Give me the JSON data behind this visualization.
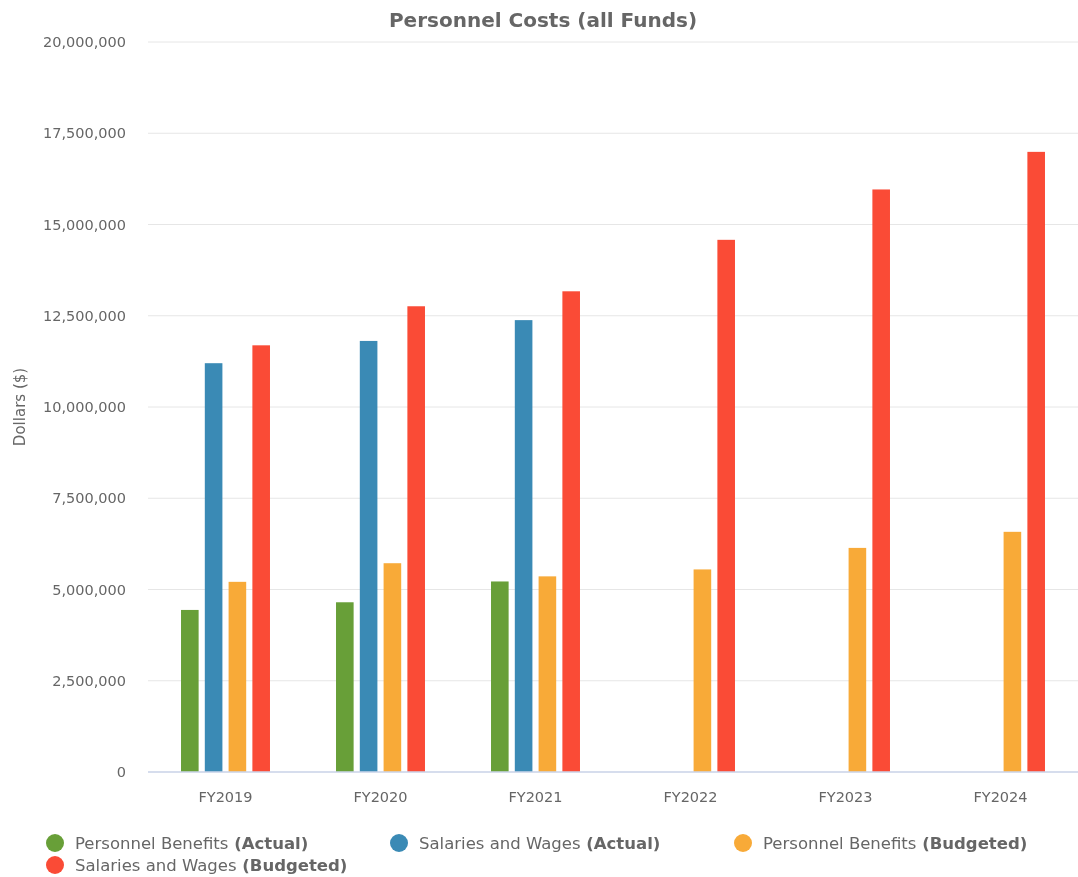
{
  "chart_data": {
    "type": "bar",
    "title": "Personnel Costs (all Funds)",
    "ylabel": "Dollars ($)",
    "categories": [
      "FY2019",
      "FY2020",
      "FY2021",
      "FY2022",
      "FY2023",
      "FY2024"
    ],
    "series": [
      {
        "name": "Personnel Benefits (Actual)",
        "color": "#689f38",
        "values": [
          4440000,
          4650000,
          5220000,
          null,
          null,
          null
        ]
      },
      {
        "name": "Salaries and Wages (Actual)",
        "color": "#3a8ab5",
        "values": [
          11200000,
          11810000,
          12380000,
          null,
          null,
          null
        ]
      },
      {
        "name": "Personnel Benefits (Budgeted)",
        "color": "#f8aa38",
        "values": [
          5210000,
          5720000,
          5360000,
          5550000,
          6140000,
          6580000
        ]
      },
      {
        "name": "Salaries and Wages (Budgeted)",
        "color": "#fa4b36",
        "values": [
          11690000,
          12760000,
          13170000,
          14580000,
          15960000,
          16990000
        ]
      }
    ],
    "ylim": [
      0,
      20000000
    ],
    "yticks": [
      0,
      {
        "value": 2500000,
        "label": "2,500,000"
      },
      {
        "value": 5000000,
        "label": "5,000,000"
      },
      {
        "value": 7500000,
        "label": "7,500,000"
      },
      {
        "value": 10000000,
        "label": "10,000,000"
      },
      {
        "value": 12500000,
        "label": "12,500,000"
      },
      {
        "value": 15000000,
        "label": "15,000,000"
      },
      {
        "value": 17500000,
        "label": "17,500,000"
      },
      {
        "value": 20000000,
        "label": "20,000,000"
      }
    ],
    "grid": "y",
    "legend": "bottom"
  }
}
